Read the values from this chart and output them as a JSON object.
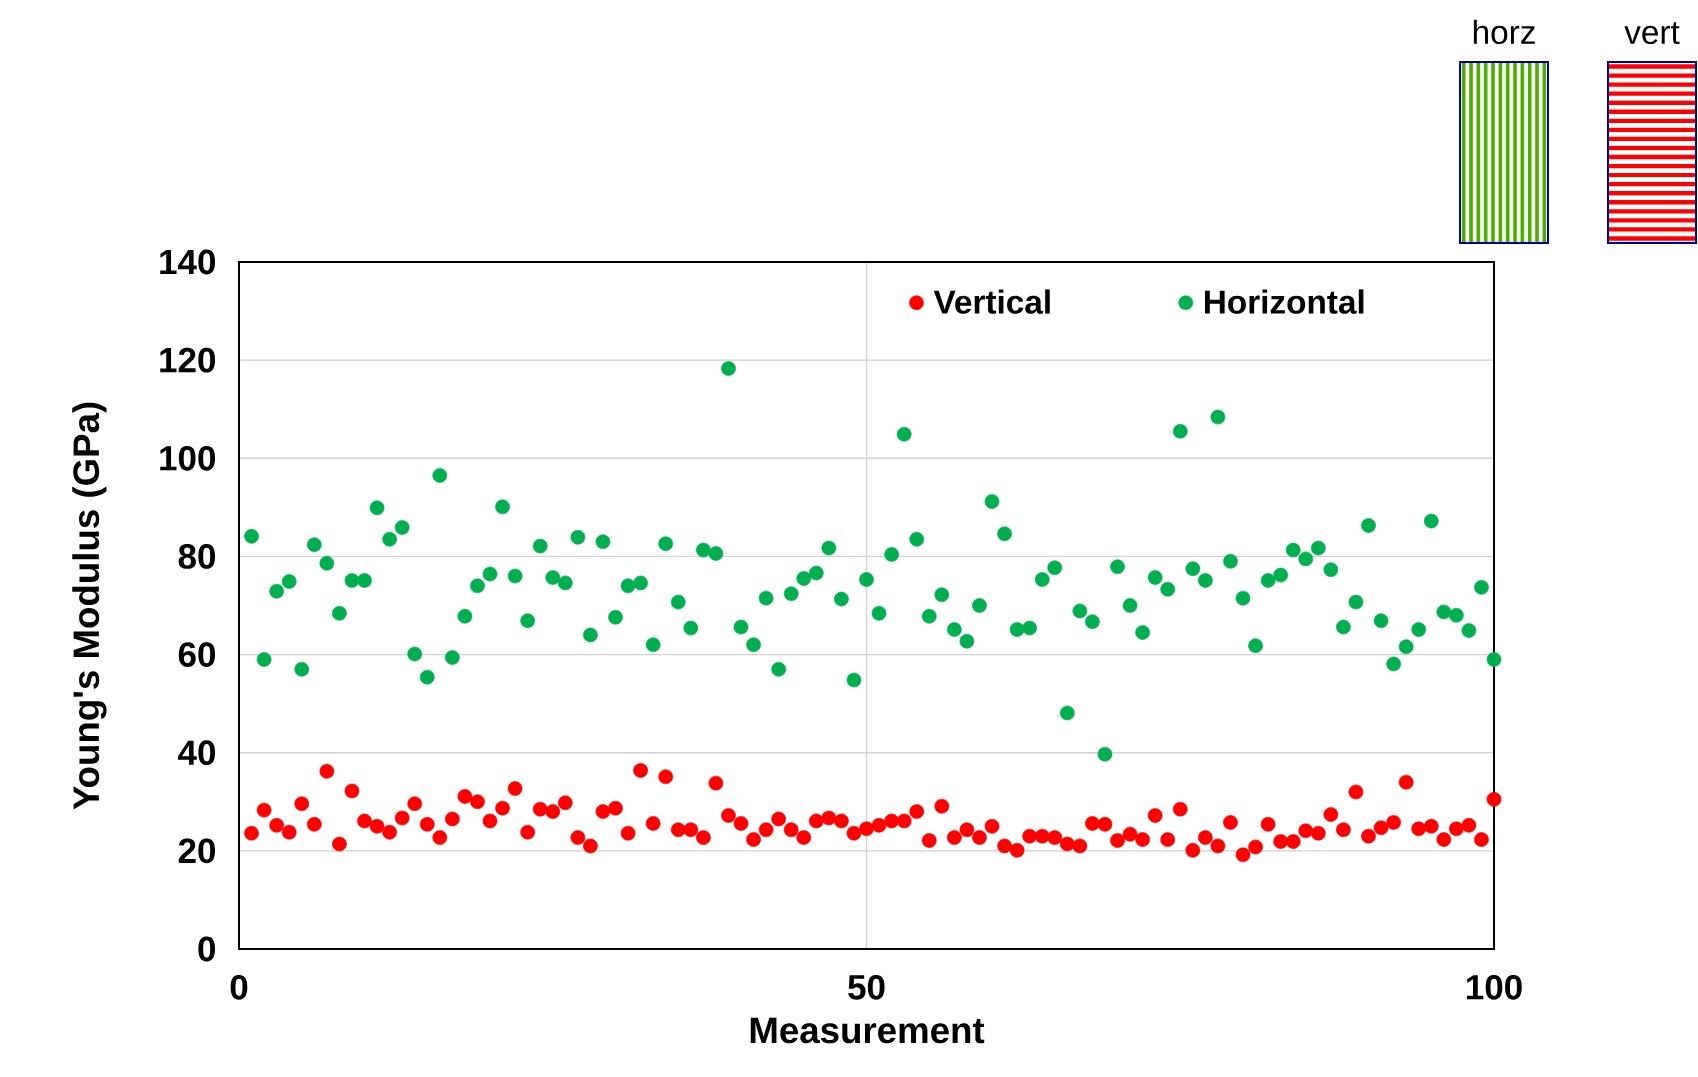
{
  "chart_data": {
    "type": "scatter",
    "xlabel": "Measurement",
    "ylabel": "Young's Modulus (GPa)",
    "annotations": [
      "horz",
      "vert"
    ],
    "xlim": [
      0,
      100
    ],
    "xticks": [
      0,
      50,
      100
    ],
    "ylim": [
      0,
      140
    ],
    "yticks": [
      0,
      20,
      40,
      60,
      80,
      100,
      120,
      140
    ],
    "grid": true,
    "legend": "top right",
    "x": [
      1,
      2,
      3,
      4,
      5,
      6,
      7,
      8,
      9,
      10,
      11,
      12,
      13,
      14,
      15,
      16,
      17,
      18,
      19,
      20,
      21,
      22,
      23,
      24,
      25,
      26,
      27,
      28,
      29,
      30,
      31,
      32,
      33,
      34,
      35,
      36,
      37,
      38,
      39,
      40,
      41,
      42,
      43,
      44,
      45,
      46,
      47,
      48,
      49,
      50,
      51,
      52,
      53,
      54,
      55,
      56,
      57,
      58,
      59,
      60,
      61,
      62,
      63,
      64,
      65,
      66,
      67,
      68,
      69,
      70,
      71,
      72,
      73,
      74,
      75,
      76,
      77,
      78,
      79,
      80,
      81,
      82,
      83,
      84,
      85,
      86,
      87,
      88,
      89,
      90,
      91,
      92,
      93,
      94,
      95,
      96,
      97,
      98,
      99,
      100
    ],
    "series": [
      {
        "name": "Vertical",
        "color": "#ff0000",
        "values": [
          23.6,
          28.3,
          25.2,
          23.8,
          29.6,
          25.4,
          36.2,
          21.4,
          32.2,
          26.1,
          25,
          23.8,
          26.7,
          29.6,
          25.4,
          22.7,
          26.5,
          31.1,
          30,
          26.1,
          28.7,
          32.7,
          23.8,
          28.5,
          28,
          29.8,
          22.7,
          21,
          28,
          28.7,
          23.6,
          36.4,
          25.6,
          35.1,
          24.3,
          24.3,
          22.7,
          33.8,
          27.2,
          25.6,
          22.3,
          24.3,
          26.5,
          24.3,
          22.7,
          26.1,
          26.7,
          26.1,
          23.6,
          24.5,
          25.2,
          26.1,
          26.1,
          28,
          22.1,
          29.1,
          22.7,
          24.3,
          22.7,
          25,
          21,
          20.1,
          23,
          23,
          22.7,
          21.4,
          21,
          25.6,
          25.4,
          22.1,
          23.4,
          22.3,
          27.2,
          22.3,
          28.5,
          20.1,
          22.7,
          21,
          25.8,
          19.2,
          20.8,
          25.4,
          21.9,
          21.9,
          24.1,
          23.6,
          27.4,
          24.3,
          32,
          23,
          24.7,
          25.8,
          34,
          24.5,
          25,
          22.3,
          24.5,
          25.2,
          22.3,
          30.5
        ]
      },
      {
        "name": "Horizontal",
        "color": "#00b050",
        "values": [
          84.1,
          59,
          72.9,
          74.9,
          57,
          82.4,
          78.6,
          68.4,
          75.1,
          75.1,
          89.9,
          83.5,
          85.9,
          60.1,
          55.4,
          96.5,
          59.4,
          67.8,
          74,
          76.4,
          90.1,
          76,
          66.9,
          82.1,
          75.7,
          74.6,
          83.9,
          64,
          83,
          67.6,
          74,
          74.6,
          62,
          82.6,
          70.7,
          65.4,
          81.3,
          80.6,
          118.3,
          65.6,
          62,
          71.5,
          57,
          72.4,
          75.5,
          76.6,
          81.7,
          71.3,
          54.8,
          75.3,
          68.4,
          80.4,
          104.9,
          83.5,
          67.8,
          72.2,
          65.1,
          62.7,
          70,
          91.2,
          84.6,
          65.1,
          65.4,
          75.3,
          77.7,
          48.1,
          68.9,
          66.7,
          39.7,
          77.9,
          70,
          64.5,
          75.7,
          73.3,
          105.5,
          77.5,
          75.1,
          108.4,
          79,
          71.5,
          61.8,
          75.1,
          76.2,
          81.3,
          79.5,
          81.7,
          77.3,
          65.6,
          70.7,
          86.3,
          66.9,
          58.1,
          61.6,
          65.1,
          87.2,
          68.7,
          68,
          64.9,
          73.7,
          59
        ]
      }
    ]
  }
}
